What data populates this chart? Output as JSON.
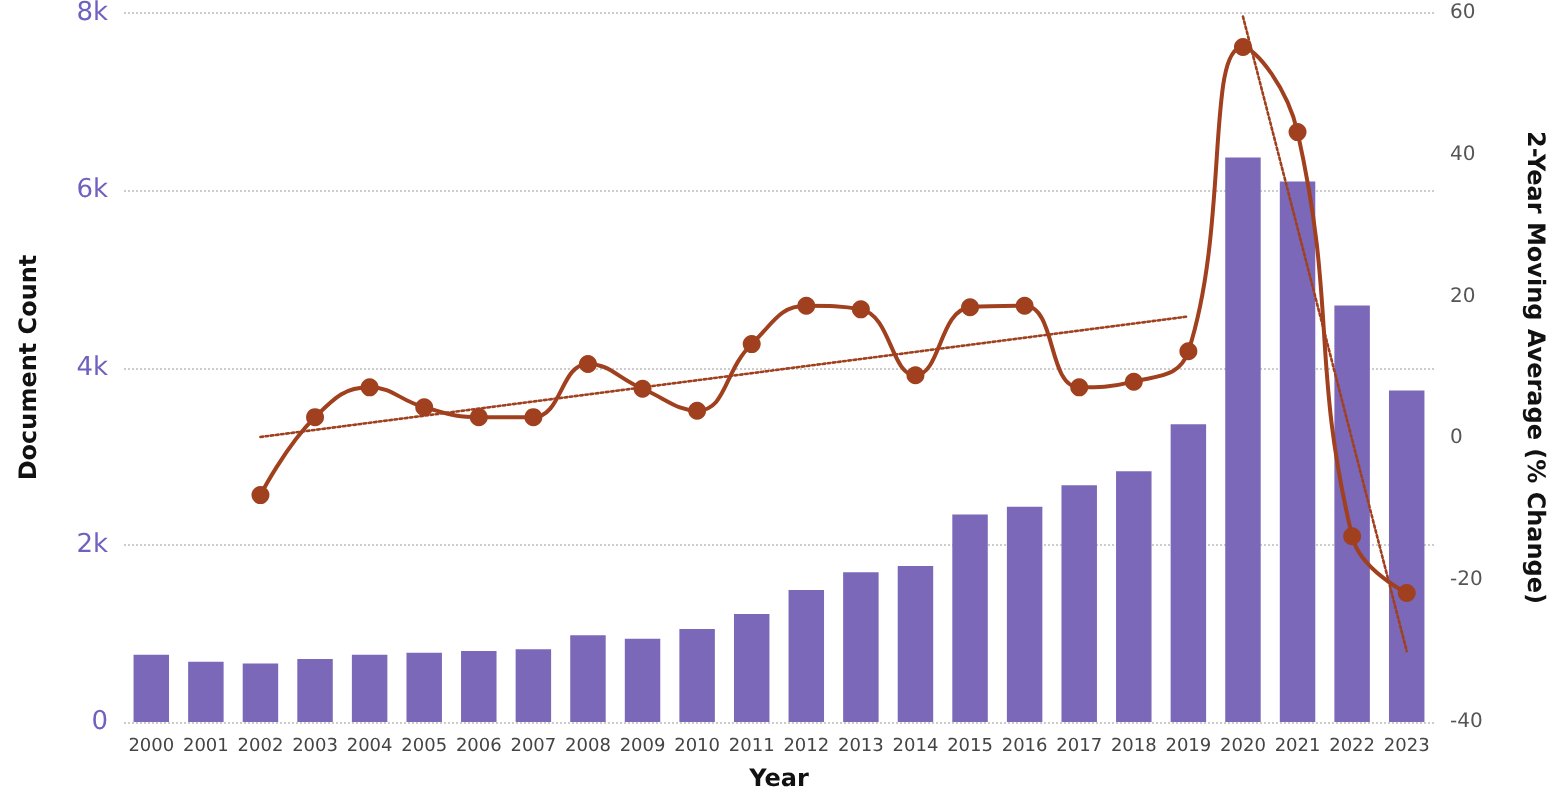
{
  "chart_data": {
    "type": "bar",
    "xlabel": "Year",
    "ylabel": "Document Count",
    "y2label": "2-Year Moving Average (% Change)",
    "categories": [
      "2000",
      "2001",
      "2002",
      "2003",
      "2004",
      "2005",
      "2006",
      "2007",
      "2008",
      "2009",
      "2010",
      "2011",
      "2012",
      "2013",
      "2014",
      "2015",
      "2016",
      "2017",
      "2018",
      "2019",
      "2020",
      "2021",
      "2022",
      "2023"
    ],
    "series": [
      {
        "color": "#7b68b8",
        "values": [
          760,
          680,
          660,
          710,
          760,
          780,
          800,
          820,
          980,
          940,
          1050,
          1220,
          1490,
          1690,
          1760,
          2340,
          2430,
          2670,
          2830,
          3360,
          6370,
          6100,
          4700,
          3740
        ]
      },
      {
        "type": "line",
        "axis": "y2",
        "color": "#a0401e",
        "marker": "circle",
        "line_style": "solid",
        "values": [
          null,
          null,
          -8,
          3,
          7.2,
          4.4,
          3,
          3,
          10.5,
          7,
          3.9,
          13.3,
          18.7,
          18.2,
          8.9,
          18.5,
          18.7,
          7.2,
          8,
          12.3,
          55.2,
          43.2,
          -13.8,
          -21.8
        ]
      },
      {
        "type": "line",
        "axis": "y2",
        "color": "#a0401e",
        "marker": "none",
        "line_style": "dotted",
        "values": [
          null,
          null,
          0.2,
          null,
          null,
          null,
          null,
          null,
          null,
          null,
          null,
          null,
          null,
          null,
          null,
          null,
          null,
          null,
          null,
          17.2,
          null,
          null,
          null,
          null
        ]
      },
      {
        "type": "line",
        "axis": "y2",
        "color": "#a0401e",
        "marker": "none",
        "line_style": "dotted",
        "values": [
          null,
          null,
          null,
          null,
          null,
          null,
          null,
          null,
          null,
          null,
          null,
          null,
          null,
          null,
          null,
          null,
          null,
          null,
          null,
          null,
          59.5,
          null,
          null,
          -30
        ]
      }
    ],
    "ylim": [
      0,
      8000
    ],
    "yticks": [
      {
        "value": 0,
        "label": "0"
      },
      {
        "value": 2000,
        "label": "2k"
      },
      {
        "value": 4000,
        "label": "4k"
      },
      {
        "value": 6000,
        "label": "6k"
      },
      {
        "value": 8000,
        "label": "8k"
      }
    ],
    "y2lim": [
      -40,
      60
    ],
    "y2ticks": [
      -40,
      -20,
      0,
      20,
      40,
      60
    ],
    "grid": "y"
  }
}
